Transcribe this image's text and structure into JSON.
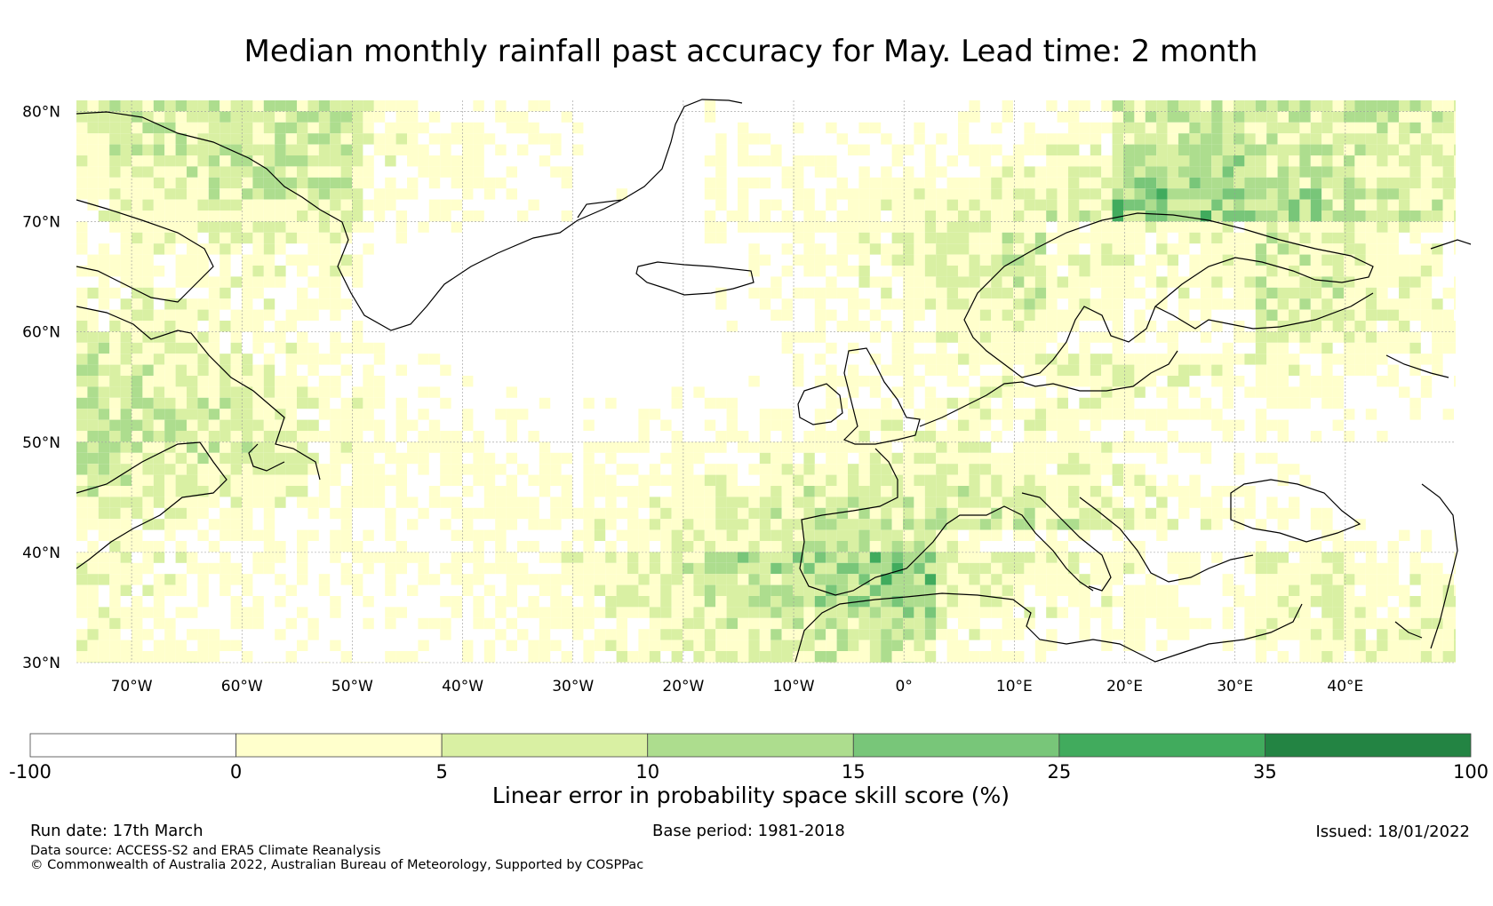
{
  "title": "Median monthly rainfall past accuracy for May. Lead time: 2 month",
  "map": {
    "lat_labels": [
      "80°N",
      "70°N",
      "60°N",
      "50°N",
      "40°N",
      "30°N"
    ],
    "lon_labels": [
      "70°W",
      "60°W",
      "50°W",
      "40°W",
      "30°W",
      "20°W",
      "10°W",
      "0°",
      "10°E",
      "20°E",
      "30°E",
      "40°E"
    ],
    "lat_range": [
      30,
      81
    ],
    "lon_range": [
      -75,
      50
    ],
    "gridlines": true
  },
  "colorbar": {
    "ticks": [
      "-100",
      "0",
      "5",
      "10",
      "15",
      "25",
      "35",
      "100"
    ],
    "bins": [
      {
        "from": -100,
        "to": 0,
        "color": "#ffffff"
      },
      {
        "from": 0,
        "to": 5,
        "color": "#ffffcc"
      },
      {
        "from": 5,
        "to": 10,
        "color": "#d9f0a3"
      },
      {
        "from": 10,
        "to": 15,
        "color": "#addd8e"
      },
      {
        "from": 15,
        "to": 25,
        "color": "#78c679"
      },
      {
        "from": 25,
        "to": 35,
        "color": "#41ab5d"
      },
      {
        "from": 35,
        "to": 100,
        "color": "#238443"
      }
    ],
    "caption": "Linear error in probability space skill score (%)"
  },
  "footer": {
    "run_date": "Run date: 17th March",
    "base_period": "Base period: 1981-2018",
    "issued": "Issued: 18/01/2022",
    "data_source": "Data source: ACCESS-S2 and ERA5 Climate Reanalysis",
    "copyright": "© Commonwealth of Australia 2022, Australian Bureau of Meteorology, Supported by COSPPac"
  }
}
